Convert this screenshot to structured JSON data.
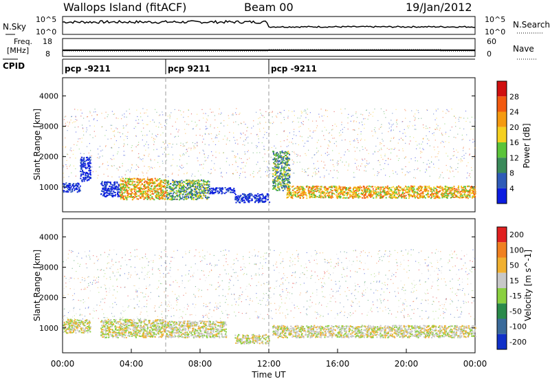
{
  "header": {
    "title": "Wallops Island (fitACF)",
    "beam": "Beam 00",
    "date": "19/Jan/2012"
  },
  "noise_panel": {
    "left_label": "N.Sky",
    "left_ticks": [
      "10^5",
      "10^0"
    ],
    "right_label": "N.Search",
    "right_ticks": [
      "10^5",
      "10^0"
    ]
  },
  "freq_panel": {
    "left_label_line1": "Freq.",
    "left_label_line2": "[MHz]",
    "left_ticks": [
      "18",
      "8"
    ],
    "right_label": "Nave",
    "right_ticks": [
      "60",
      "0"
    ],
    "freq_mhz": 10.5,
    "nave_segments": [
      {
        "start_h": 0,
        "end_h": 12,
        "value": 18
      },
      {
        "start_h": 12,
        "end_h": 22,
        "value": 23
      },
      {
        "start_h": 22,
        "end_h": 24,
        "value": 18
      }
    ]
  },
  "cpid_panel": {
    "label": "CPID",
    "segments": [
      {
        "label": "pcp -9211",
        "start_h": 0
      },
      {
        "label": "pcp 9211",
        "start_h": 6
      },
      {
        "label": "pcp -9211",
        "start_h": 12
      }
    ]
  },
  "chart_data": [
    {
      "type": "heatmap",
      "name": "power",
      "ylabel": "Slant Range [km]",
      "ylim": [
        180,
        4600
      ],
      "yticks": [
        "1000",
        "2000",
        "3000",
        "4000"
      ],
      "colorbar_label": "Power [dB]",
      "colorbar_ticks": [
        "4",
        "8",
        "12",
        "16",
        "20",
        "24",
        "28"
      ],
      "colors": [
        "#0b1ce0",
        "#2e5bb8",
        "#3a8a5a",
        "#5bc43a",
        "#f5d020",
        "#f59a10",
        "#f25a10",
        "#d01010"
      ],
      "bands": [
        {
          "start_h": 0.0,
          "end_h": 1.0,
          "range_km": [
            850,
            1150
          ],
          "level": "weak"
        },
        {
          "start_h": 1.0,
          "end_h": 1.6,
          "range_km": [
            1200,
            2000
          ],
          "level": "weak"
        },
        {
          "start_h": 2.2,
          "end_h": 3.3,
          "range_km": [
            700,
            1200
          ],
          "level": "weak"
        },
        {
          "start_h": 3.3,
          "end_h": 6.0,
          "range_km": [
            600,
            1300
          ],
          "level": "strong"
        },
        {
          "start_h": 6.0,
          "end_h": 8.5,
          "range_km": [
            600,
            1250
          ],
          "level": "moderate"
        },
        {
          "start_h": 8.5,
          "end_h": 10.0,
          "range_km": [
            800,
            1000
          ],
          "level": "weak"
        },
        {
          "start_h": 10.0,
          "end_h": 12.0,
          "range_km": [
            500,
            800
          ],
          "level": "weak"
        },
        {
          "start_h": 12.2,
          "end_h": 13.2,
          "range_km": [
            900,
            2200
          ],
          "level": "moderate"
        },
        {
          "start_h": 13.0,
          "end_h": 24.0,
          "range_km": [
            650,
            1050
          ],
          "level": "strong"
        }
      ]
    },
    {
      "type": "heatmap",
      "name": "velocity",
      "ylabel": "Slant Range [km]",
      "ylim": [
        180,
        4600
      ],
      "yticks": [
        "1000",
        "2000",
        "3000",
        "4000"
      ],
      "colorbar_label": "Velocity [m s^-1]",
      "colorbar_ticks": [
        "200",
        "100",
        "50",
        "15",
        "-15",
        "-50",
        "-100",
        "-200"
      ],
      "colors": [
        "#1030c8",
        "#3a6a9a",
        "#2a8a4a",
        "#8ad040",
        "#c8c8c8",
        "#f0b030",
        "#f08020",
        "#e02020"
      ],
      "bands": [
        {
          "start_h": 0.0,
          "end_h": 1.6,
          "range_km": [
            850,
            1300
          ],
          "level": "orange"
        },
        {
          "start_h": 2.2,
          "end_h": 6.0,
          "range_km": [
            700,
            1300
          ],
          "level": "green"
        },
        {
          "start_h": 6.0,
          "end_h": 9.5,
          "range_km": [
            700,
            1250
          ],
          "level": "grey"
        },
        {
          "start_h": 10.0,
          "end_h": 12.0,
          "range_km": [
            500,
            800
          ],
          "level": "orange"
        },
        {
          "start_h": 12.2,
          "end_h": 24.0,
          "range_km": [
            700,
            1100
          ],
          "level": "grey"
        }
      ]
    }
  ],
  "x_axis": {
    "ticks": [
      "00:00",
      "04:00",
      "08:00",
      "12:00",
      "16:00",
      "20:00",
      "00:00"
    ],
    "label": "Time UT"
  }
}
